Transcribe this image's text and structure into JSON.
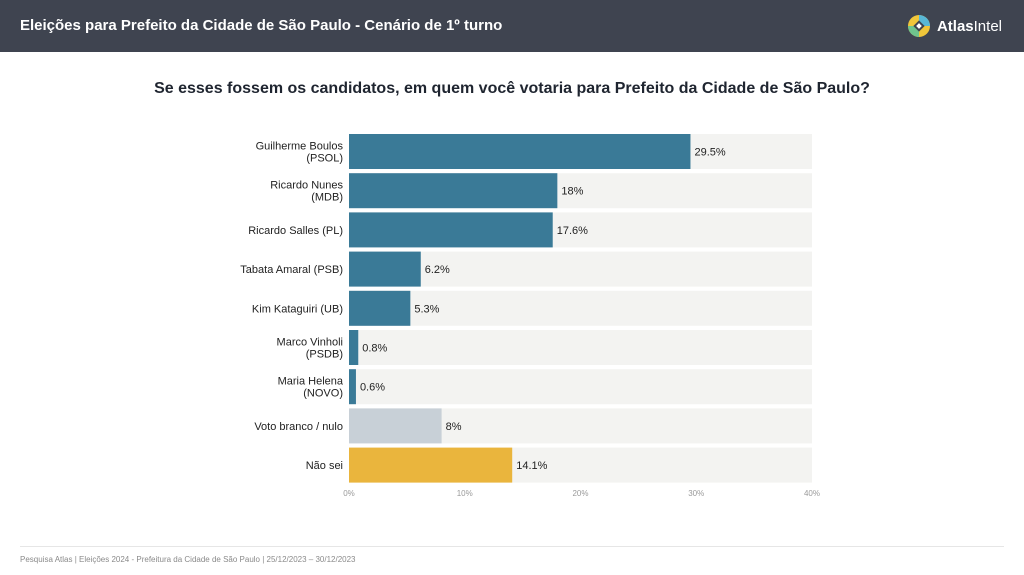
{
  "header": {
    "title": "Eleições para Prefeito da Cidade de São Paulo - Cenário de 1º turno",
    "brand_part1": "Atlas",
    "brand_part2": "Intel",
    "icon": "atlasintel-logo-icon"
  },
  "question": "Se esses fossem os candidatos, em quem você votaria para Prefeito da Cidade de São Paulo?",
  "colors": {
    "candidate": "#3a7a97",
    "blank": "#c8d0d7",
    "dontknow": "#eab53d",
    "track": "#f3f3f1"
  },
  "chart_data": {
    "type": "bar",
    "orientation": "horizontal",
    "categories": [
      [
        "Guilherme Boulos",
        "(PSOL)"
      ],
      [
        "Ricardo Nunes",
        "(MDB)"
      ],
      [
        "Ricardo Salles (PL)"
      ],
      [
        "Tabata Amaral (PSB)"
      ],
      [
        "Kim Kataguiri (UB)"
      ],
      [
        "Marco Vinholi",
        "(PSDB)"
      ],
      [
        "Maria Helena",
        "(NOVO)"
      ],
      [
        "Voto branco / nulo"
      ],
      [
        "Não sei"
      ]
    ],
    "values": [
      29.5,
      18,
      17.6,
      6.2,
      5.3,
      0.8,
      0.6,
      8,
      14.1
    ],
    "value_labels": [
      "29.5%",
      "18%",
      "17.6%",
      "6.2%",
      "5.3%",
      "0.8%",
      "0.6%",
      "8%",
      "14.1%"
    ],
    "bar_colors": [
      "candidate",
      "candidate",
      "candidate",
      "candidate",
      "candidate",
      "candidate",
      "candidate",
      "blank",
      "dontknow"
    ],
    "xlim": [
      0,
      40
    ],
    "ticks": [
      0,
      10,
      20,
      30,
      40
    ],
    "tick_labels": [
      "0%",
      "10%",
      "20%",
      "30%",
      "40%"
    ],
    "grid": false
  },
  "footer": "Pesquisa Atlas  |  Eleições 2024 - Prefeitura da Cidade de São Paulo  |  25/12/2023 – 30/12/2023"
}
